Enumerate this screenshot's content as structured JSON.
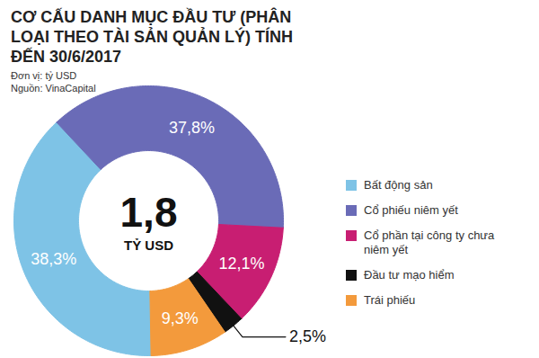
{
  "chart_data": {
    "type": "pie",
    "title": "CƠ CẤU DANH MỤC ĐẦU TƯ (PHÂN LOẠI THEO TÀI SẢN QUẢN LÝ) TÍNH ĐẾN 30/6/2017",
    "unit": "Đơn vị: tỷ USD",
    "source": "Nguồn: VinaCapital",
    "categories": [
      "Bất động sản",
      "Cổ phiếu niêm yết",
      "Cổ phần tại công ty chưa niêm yết",
      "Đầu tư mạo hiểm",
      "Trái phiếu"
    ],
    "values": [
      38.3,
      37.8,
      12.1,
      2.5,
      9.3
    ],
    "value_labels": [
      "38,3%",
      "37,8%",
      "12,1%",
      "2,5%",
      "9,3%"
    ],
    "colors": [
      "#7ec3e6",
      "#6a6bb7",
      "#c81e72",
      "#111111",
      "#f39a3c"
    ],
    "data_labels": true,
    "legend": "right",
    "total": {
      "value": 1.8,
      "label": "1,8",
      "unit": "TỶ USD"
    }
  }
}
